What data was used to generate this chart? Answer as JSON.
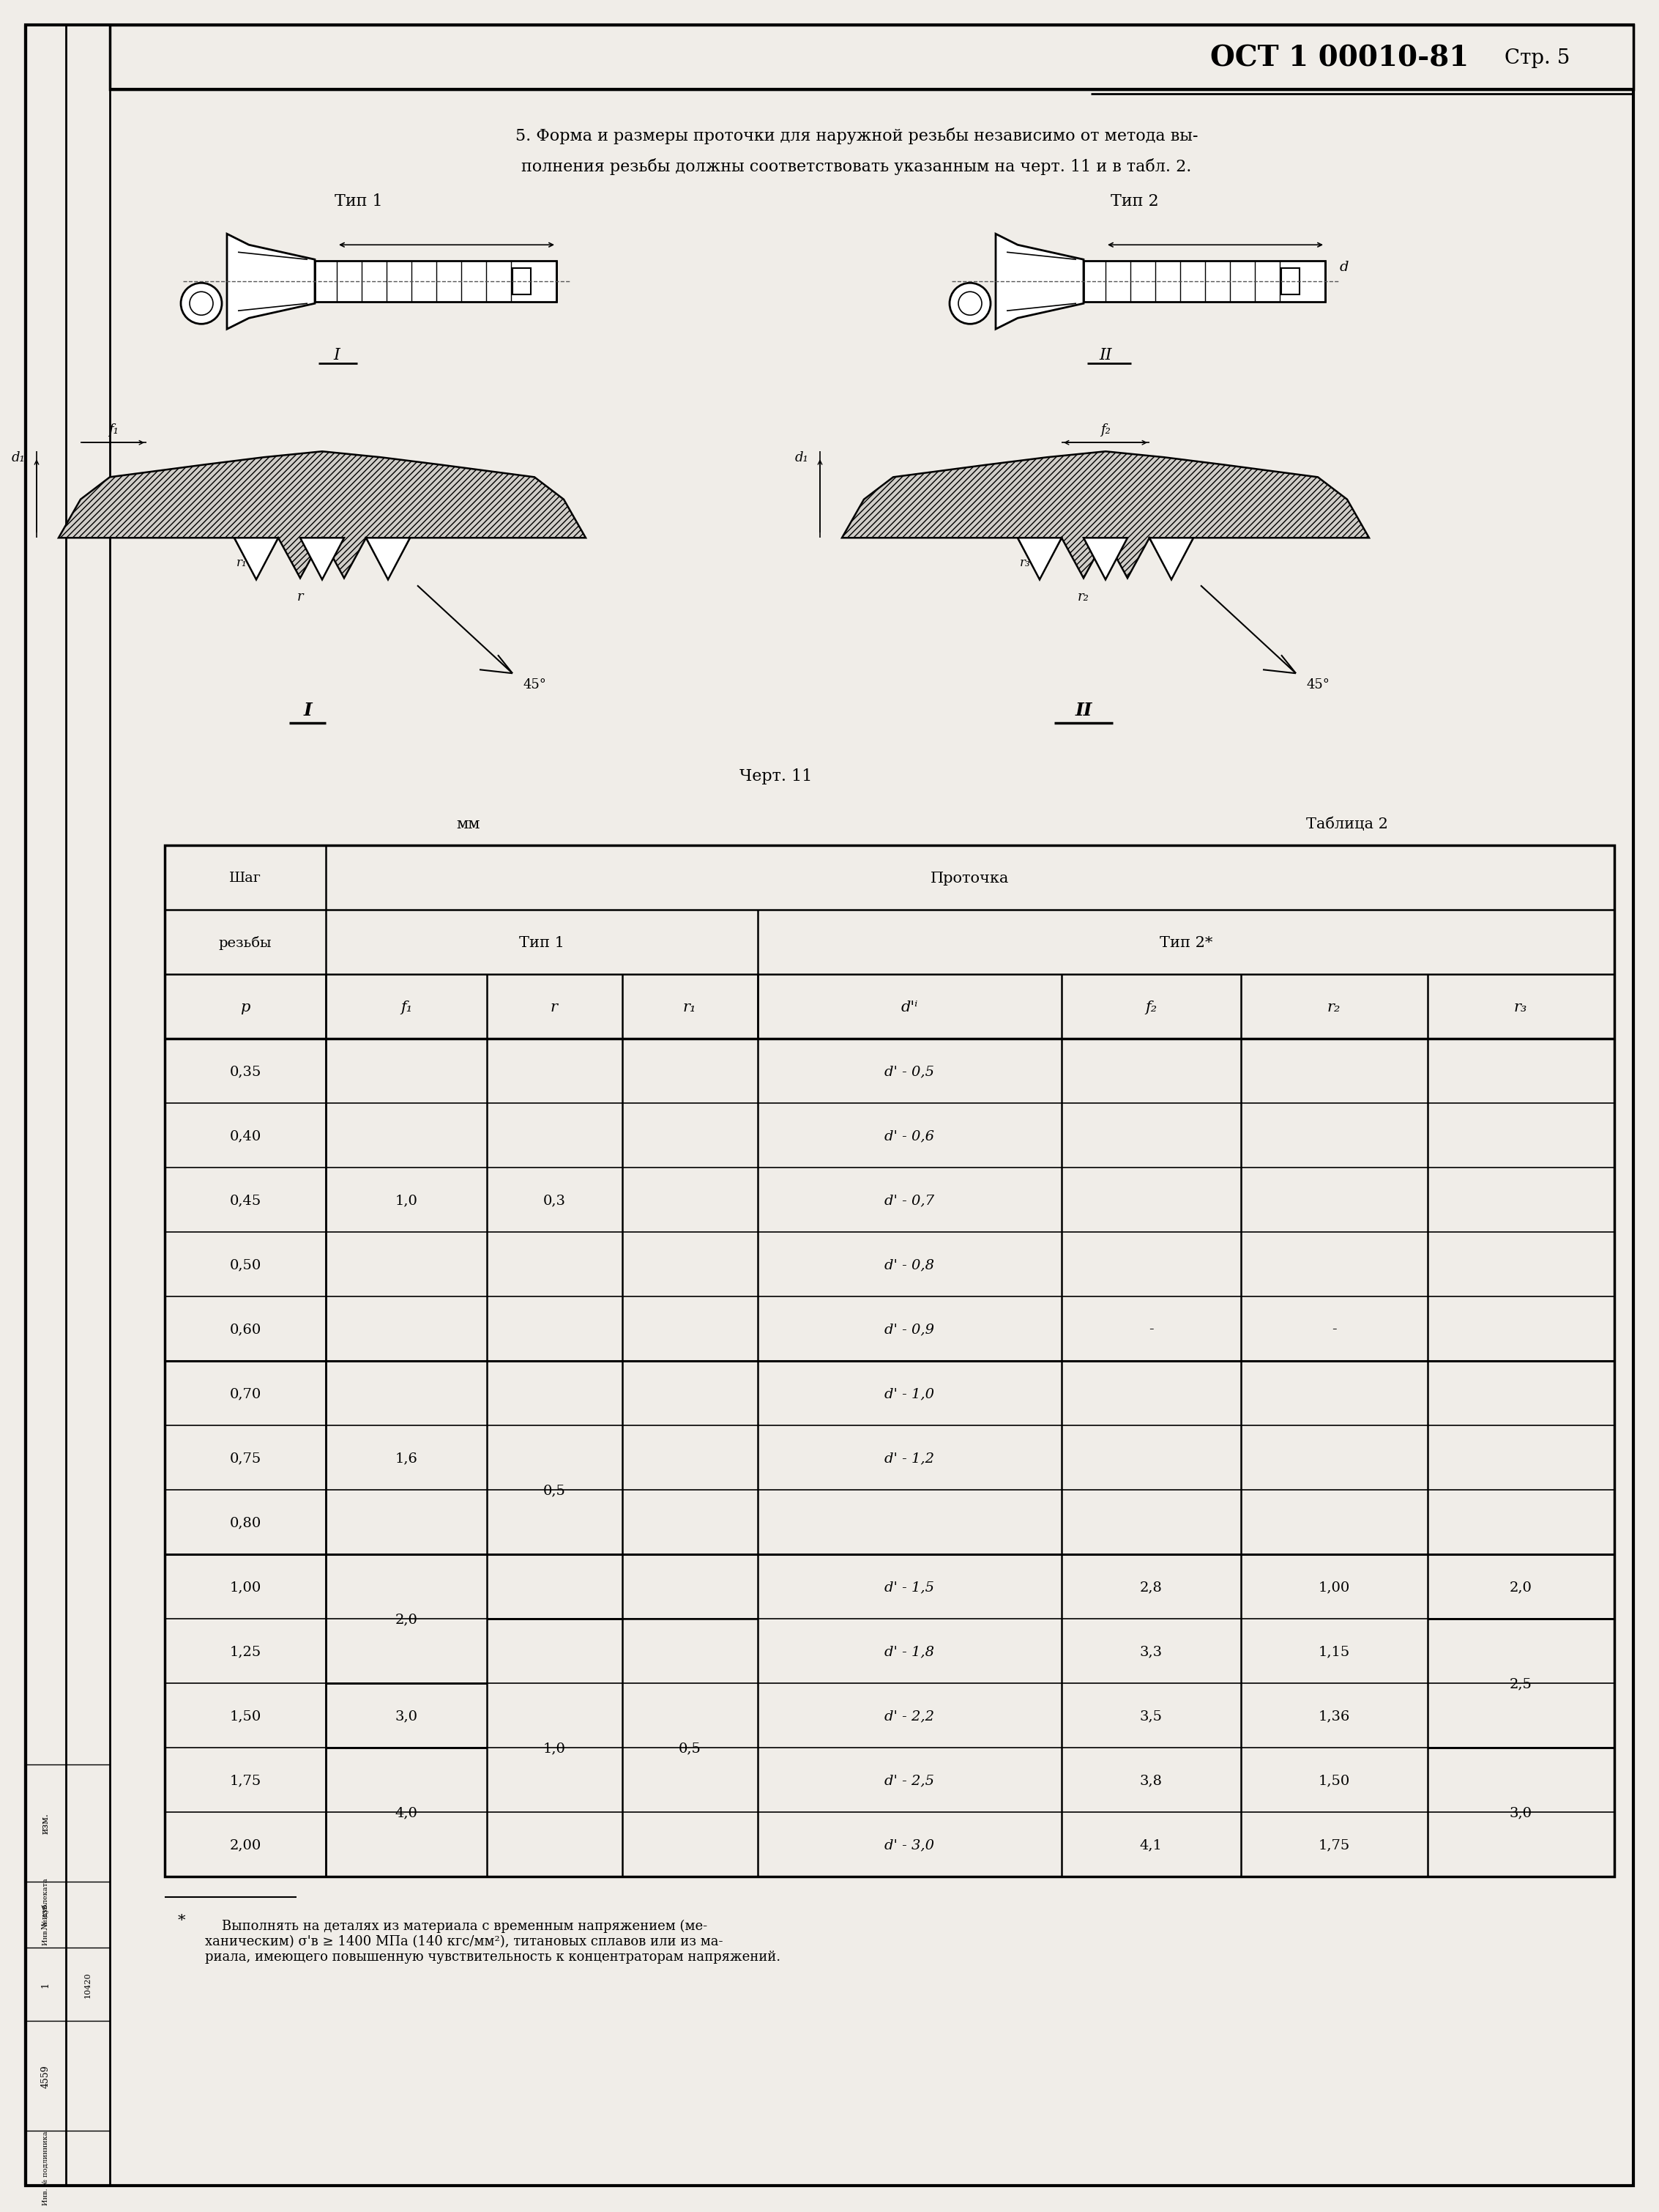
{
  "page_bg": "#f0ede8",
  "page_width": 22.46,
  "page_height": 30.0,
  "header_title": "ОСТ 1 00010-81",
  "header_page": "Стр. 5",
  "tip1_label": "Тип 1",
  "tip2_label": "Тип 2",
  "chert_label": "Черт. 11",
  "table_label": "Таблица 2",
  "mm_label": "мм",
  "col_label_p": "Шаг\nрезьбы\nр",
  "col_label_f1": "f₁",
  "col_label_r": "r",
  "col_label_r1": "r₁",
  "col_label_df": "d'ⁱ",
  "col_label_f2": "f₂",
  "col_label_r2": "r₂",
  "col_label_r3": "r₃",
  "prochotka_label": "Проточка",
  "tip1_header": "Тип 1",
  "tip2_header": "Тип 2*",
  "rows_p": [
    "0,35",
    "0,40",
    "0,45",
    "0,50",
    "0,60",
    "0,70",
    "0,75",
    "0,80",
    "1,00",
    "1,25",
    "1,50",
    "1,75",
    "2,00"
  ],
  "rows_df": [
    "d' - 0,5",
    "d' - 0,6",
    "d' - 0,7",
    "d' - 0,8",
    "d' - 0,9",
    "d' - 1,0",
    "d' - 1,2",
    "",
    "d' - 1,5",
    "d' - 1,8",
    "d' - 2,2",
    "d' - 2,5",
    "d' - 3,0"
  ],
  "rows_f2": [
    "",
    "",
    "",
    "",
    "-",
    "",
    "",
    "",
    "2,8",
    "3,3",
    "3,5",
    "3,8",
    "4,1"
  ],
  "rows_r2": [
    "",
    "",
    "",
    "",
    "-",
    "",
    "",
    "",
    "1,00",
    "1,15",
    "1,36",
    "1,50",
    "1,75"
  ],
  "f1_merges": [
    [
      0,
      4,
      "1,0"
    ],
    [
      5,
      7,
      "1,6"
    ],
    [
      8,
      9,
      "2,0"
    ],
    [
      10,
      10,
      "3,0"
    ],
    [
      11,
      12,
      "4,0"
    ]
  ],
  "r_merges": [
    [
      0,
      4,
      "0,3"
    ],
    [
      5,
      8,
      "0,5"
    ],
    [
      9,
      12,
      "1,0"
    ]
  ],
  "r1_merges": [
    [
      9,
      12,
      "0,5"
    ]
  ],
  "r3_merges": [
    [
      8,
      8,
      "2,0"
    ],
    [
      9,
      10,
      "2,5"
    ],
    [
      11,
      12,
      "3,0"
    ]
  ],
  "dash_rows_f2r2r3": [
    4
  ],
  "footnote_line1": "    Выполнять на деталях из материала с временным напряжением (ме-",
  "footnote_line2": "ханическим) σ'в ≥ 1400 МПа (140 кгс/мм²), титановых сплавов или из ма-",
  "footnote_line3": "риала, имеющего повышенную чувствительность к концентраторам напряжений."
}
